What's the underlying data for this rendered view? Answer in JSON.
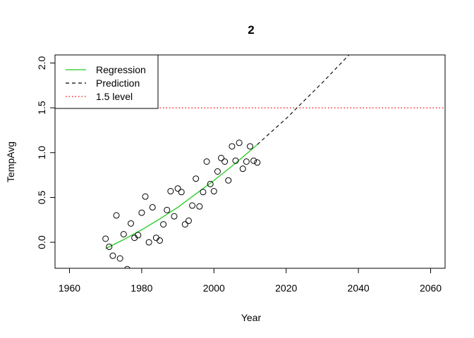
{
  "chart_data": {
    "type": "scatter",
    "title": "2",
    "xlabel": "Year",
    "ylabel": "TempAvg",
    "xlim": [
      1956,
      2064
    ],
    "ylim": [
      -0.29,
      2.09
    ],
    "xticks": [
      1960,
      1980,
      2000,
      2020,
      2040,
      2060
    ],
    "yticks": [
      0.0,
      0.5,
      1.0,
      1.5,
      2.0
    ],
    "grid": false,
    "legend_position": "top-left",
    "legend": [
      {
        "label": "Regression",
        "style": "solid",
        "color": "#22cc22"
      },
      {
        "label": "Prediction",
        "style": "dashed",
        "color": "#000000"
      },
      {
        "label": "1.5 level",
        "style": "dotted",
        "color": "#ff0000"
      }
    ],
    "points": [
      [
        1970,
        0.04
      ],
      [
        1971,
        -0.05
      ],
      [
        1972,
        -0.15
      ],
      [
        1973,
        0.3
      ],
      [
        1974,
        -0.18
      ],
      [
        1975,
        0.09
      ],
      [
        1976,
        -0.3
      ],
      [
        1977,
        0.21
      ],
      [
        1978,
        0.05
      ],
      [
        1979,
        0.08
      ],
      [
        1980,
        0.33
      ],
      [
        1981,
        0.51
      ],
      [
        1982,
        0.0
      ],
      [
        1983,
        0.39
      ],
      [
        1984,
        0.05
      ],
      [
        1985,
        0.02
      ],
      [
        1986,
        0.2
      ],
      [
        1987,
        0.36
      ],
      [
        1988,
        0.57
      ],
      [
        1989,
        0.29
      ],
      [
        1990,
        0.6
      ],
      [
        1991,
        0.56
      ],
      [
        1992,
        0.2
      ],
      [
        1993,
        0.24
      ],
      [
        1994,
        0.41
      ],
      [
        1995,
        0.71
      ],
      [
        1996,
        0.4
      ],
      [
        1997,
        0.56
      ],
      [
        1998,
        0.9
      ],
      [
        1999,
        0.65
      ],
      [
        2000,
        0.57
      ],
      [
        2001,
        0.79
      ],
      [
        2002,
        0.94
      ],
      [
        2003,
        0.9
      ],
      [
        2004,
        0.69
      ],
      [
        2005,
        1.07
      ],
      [
        2006,
        0.91
      ],
      [
        2007,
        1.11
      ],
      [
        2008,
        0.82
      ],
      [
        2009,
        0.9
      ],
      [
        2010,
        1.07
      ],
      [
        2011,
        0.91
      ],
      [
        2012,
        0.89
      ]
    ],
    "regression": [
      [
        1970,
        -0.07
      ],
      [
        1975,
        0.03
      ],
      [
        1980,
        0.14
      ],
      [
        1985,
        0.26
      ],
      [
        1990,
        0.39
      ],
      [
        1995,
        0.54
      ],
      [
        2000,
        0.69
      ],
      [
        2005,
        0.85
      ],
      [
        2010,
        1.02
      ],
      [
        2012,
        1.09
      ]
    ],
    "prediction": [
      [
        2012,
        1.09
      ],
      [
        2015,
        1.2
      ],
      [
        2020,
        1.38
      ],
      [
        2025,
        1.58
      ],
      [
        2030,
        1.78
      ],
      [
        2035,
        1.99
      ],
      [
        2040,
        2.2
      ]
    ],
    "level_line": {
      "y": 1.5,
      "color": "#ff0000"
    },
    "colors": {
      "regression": "#22cc22",
      "prediction": "#000000",
      "level": "#ff0000",
      "points": "#000000"
    }
  }
}
